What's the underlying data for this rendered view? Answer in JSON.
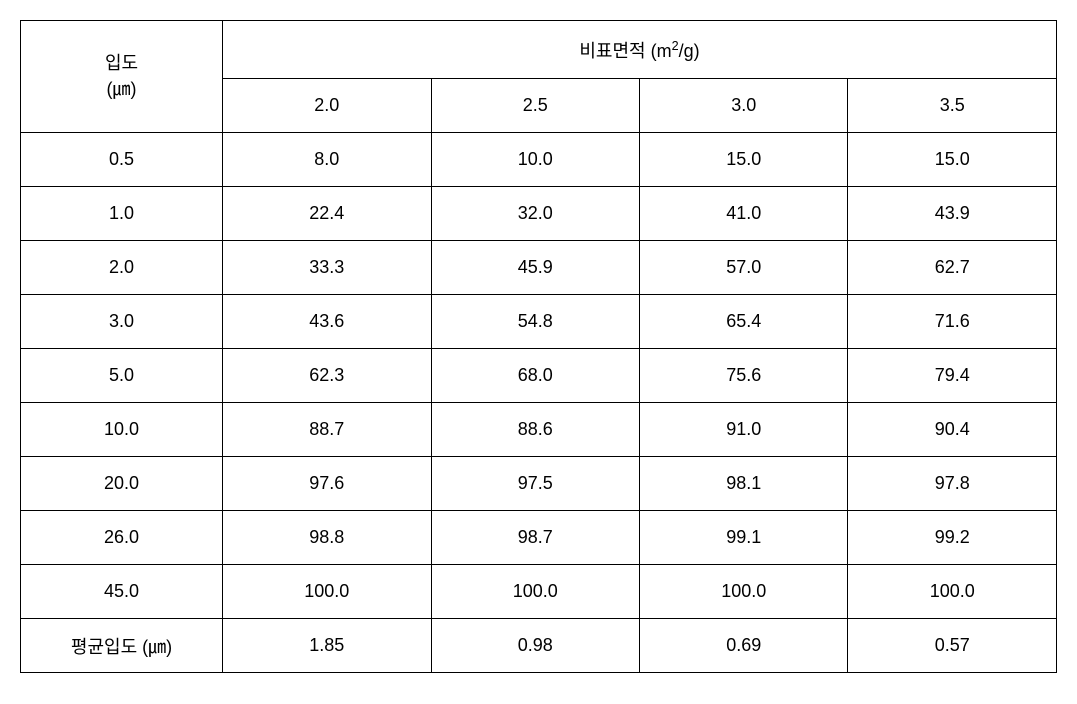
{
  "table": {
    "row_header_label_line1": "입도",
    "row_header_label_line2": "(㎛)",
    "col_header_prefix": "비표면적 (m",
    "col_header_super": "2",
    "col_header_suffix": "/g)",
    "sub_headers": [
      "2.0",
      "2.5",
      "3.0",
      "3.5"
    ],
    "rows": [
      {
        "label": "0.5",
        "cells": [
          "8.0",
          "10.0",
          "15.0",
          "15.0"
        ]
      },
      {
        "label": "1.0",
        "cells": [
          "22.4",
          "32.0",
          "41.0",
          "43.9"
        ]
      },
      {
        "label": "2.0",
        "cells": [
          "33.3",
          "45.9",
          "57.0",
          "62.7"
        ]
      },
      {
        "label": "3.0",
        "cells": [
          "43.6",
          "54.8",
          "65.4",
          "71.6"
        ]
      },
      {
        "label": "5.0",
        "cells": [
          "62.3",
          "68.0",
          "75.6",
          "79.4"
        ]
      },
      {
        "label": "10.0",
        "cells": [
          "88.7",
          "88.6",
          "91.0",
          "90.4"
        ]
      },
      {
        "label": "20.0",
        "cells": [
          "97.6",
          "97.5",
          "98.1",
          "97.8"
        ]
      },
      {
        "label": "26.0",
        "cells": [
          "98.8",
          "98.7",
          "99.1",
          "99.2"
        ]
      },
      {
        "label": "45.0",
        "cells": [
          "100.0",
          "100.0",
          "100.0",
          "100.0"
        ]
      },
      {
        "label": "평균입도 (㎛)",
        "cells": [
          "1.85",
          "0.98",
          "0.69",
          "0.57"
        ]
      }
    ],
    "border_color": "#000000",
    "background_color": "#ffffff",
    "text_color": "#000000",
    "font_size": 18,
    "header_row_height": 58,
    "data_row_height": 54
  }
}
